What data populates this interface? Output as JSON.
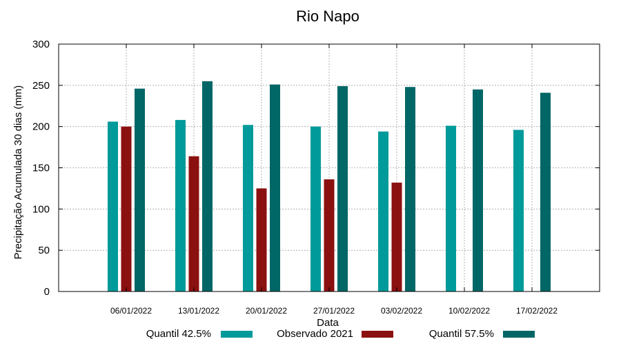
{
  "chart_data": {
    "type": "bar",
    "title": "Rio Napo",
    "xlabel": "Data",
    "ylabel": "Precipitação Acumulada 30 dias (mm)",
    "ylim": [
      0,
      300
    ],
    "yticks": [
      0,
      50,
      100,
      150,
      200,
      250,
      300
    ],
    "grid": true,
    "legend_position": "bottom",
    "categories": [
      "06/01/2022",
      "13/01/2022",
      "20/01/2022",
      "27/01/2022",
      "03/02/2022",
      "10/02/2022",
      "17/02/2022"
    ],
    "series": [
      {
        "name": "Quantil 42.5%",
        "color": "#009a9a",
        "values": [
          206,
          208,
          202,
          200,
          194,
          201,
          196
        ]
      },
      {
        "name": "Observado 2021",
        "color": "#8b1010",
        "values": [
          200,
          164,
          125,
          136,
          132,
          null,
          null
        ]
      },
      {
        "name": "Quantil 57.5%",
        "color": "#006666",
        "values": [
          246,
          255,
          251,
          249,
          248,
          245,
          241
        ]
      }
    ]
  }
}
